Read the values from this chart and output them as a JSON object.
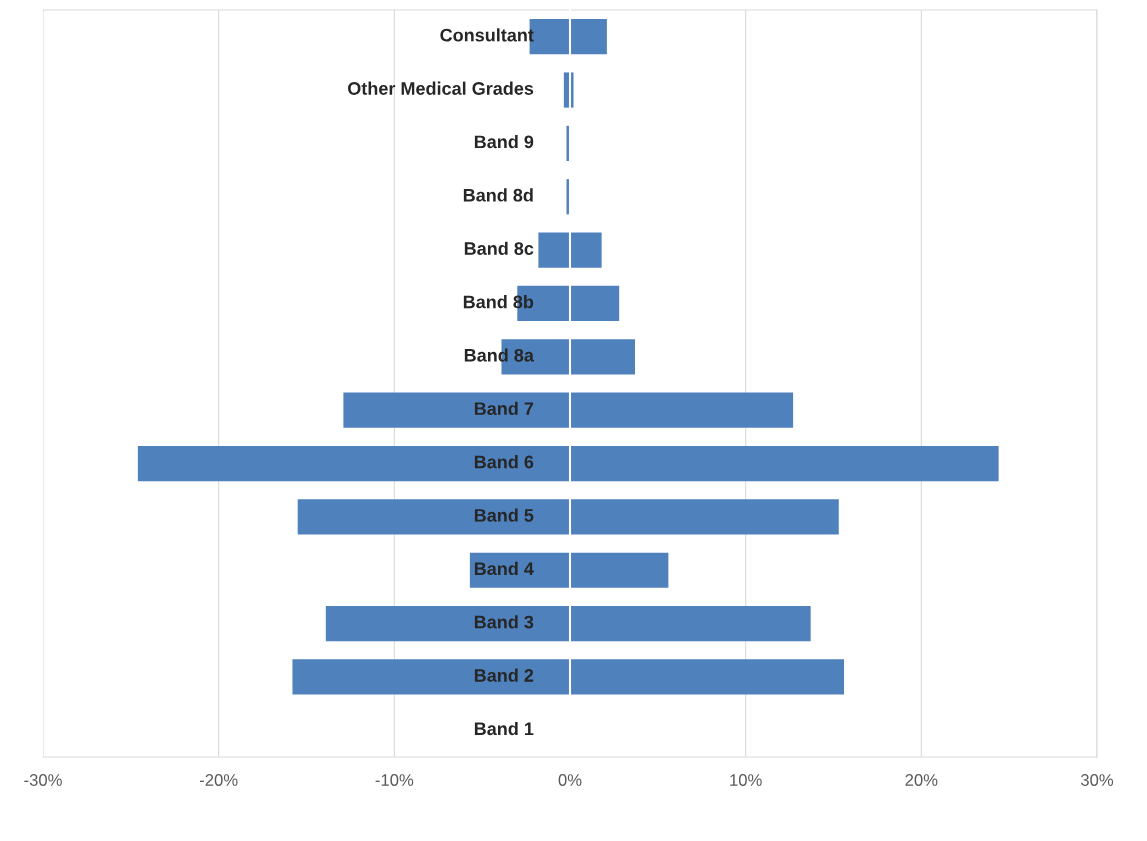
{
  "chart_data": {
    "type": "bar",
    "orientation": "horizontal",
    "stacked": true,
    "categories": [
      "Consultant",
      "Other Medical Grades",
      "Band 9",
      "Band 8d",
      "Band 8c",
      "Band 8b",
      "Band 8a",
      "Band 7",
      "Band 6",
      "Band 5",
      "Band 4",
      "Band 3",
      "Band 2",
      "Band 1"
    ],
    "series": [
      {
        "color": "#4f81bd",
        "values": [
          -2.3,
          -0.35,
          -0.2,
          -0.2,
          -1.8,
          -3.0,
          -3.9,
          -12.9,
          -24.6,
          -15.5,
          -5.7,
          -13.9,
          -15.8,
          0
        ]
      },
      {
        "color": "#4f81bd",
        "values": [
          2.1,
          0.2,
          0,
          0,
          1.8,
          2.8,
          3.7,
          12.7,
          24.4,
          15.3,
          5.6,
          13.7,
          15.6,
          0
        ]
      }
    ],
    "xlim": [
      -30,
      30
    ],
    "xticks": [
      {
        "value": -30,
        "label": "-30%"
      },
      {
        "value": -20,
        "label": "-20%"
      },
      {
        "value": -10,
        "label": "-10%"
      },
      {
        "value": 0,
        "label": "0%"
      },
      {
        "value": 10,
        "label": "10%"
      },
      {
        "value": 20,
        "label": "20%"
      },
      {
        "value": 30,
        "label": "30%"
      }
    ],
    "grid": "x"
  }
}
